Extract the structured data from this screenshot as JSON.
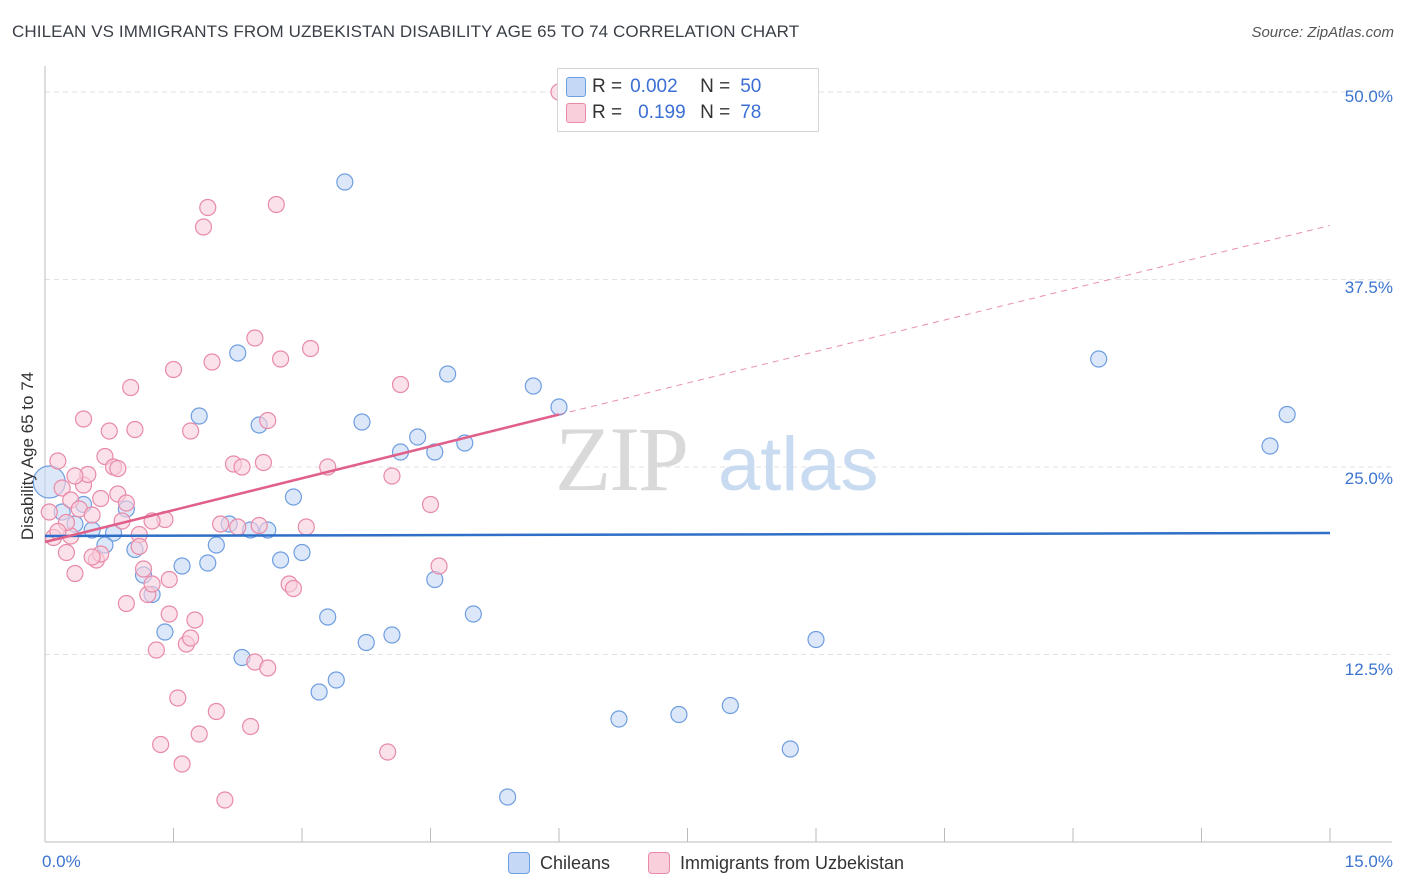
{
  "chart_data": {
    "type": "scatter",
    "title": "CHILEAN VS IMMIGRANTS FROM UZBEKISTAN DISABILITY AGE 65 TO 74 CORRELATION CHART",
    "source": "Source: ZipAtlas.com",
    "xlabel": "",
    "ylabel": "Disability Age 65 to 74",
    "xlim": [
      0,
      15
    ],
    "ylim": [
      0,
      52
    ],
    "x_tick_labels": [
      "0.0%",
      "15.0%"
    ],
    "y_ticks": [
      12.5,
      25.0,
      37.5,
      50.0
    ],
    "y_tick_labels": [
      "12.5%",
      "25.0%",
      "37.5%",
      "50.0%"
    ],
    "watermark": "ZIPatlas",
    "colors": {
      "chileans_fill": "#c5d8f5",
      "chileans_stroke": "#6f9ee0",
      "chileans_line": "#2f6fc7",
      "uzbek_fill": "#f9cfdc",
      "uzbek_stroke": "#e88aa8",
      "uzbek_line": "#e0608a",
      "grid": "#e2e2e2",
      "axis_text": "#3b74cf"
    },
    "series": [
      {
        "name": "Chileans",
        "r_label": "R =",
        "r_value": "0.002",
        "n_label": "N =",
        "n_value": "50",
        "trend": {
          "x": [
            0.0,
            15.0
          ],
          "y": [
            20.4,
            20.6
          ],
          "dashed_extension": false
        },
        "points": [
          [
            0.05,
            24.0
          ],
          [
            0.2,
            22.0
          ],
          [
            0.35,
            21.2
          ],
          [
            0.45,
            22.5
          ],
          [
            0.55,
            20.8
          ],
          [
            0.8,
            20.6
          ],
          [
            0.7,
            19.8
          ],
          [
            0.95,
            22.2
          ],
          [
            1.05,
            19.5
          ],
          [
            1.15,
            17.8
          ],
          [
            1.25,
            16.5
          ],
          [
            1.4,
            14.0
          ],
          [
            1.6,
            18.4
          ],
          [
            1.8,
            28.4
          ],
          [
            1.9,
            18.6
          ],
          [
            2.0,
            19.8
          ],
          [
            2.15,
            21.2
          ],
          [
            2.25,
            32.6
          ],
          [
            2.4,
            20.8
          ],
          [
            2.5,
            27.8
          ],
          [
            2.6,
            20.8
          ],
          [
            2.75,
            18.8
          ],
          [
            2.9,
            23.0
          ],
          [
            3.0,
            19.3
          ],
          [
            3.3,
            15.0
          ],
          [
            3.4,
            10.8
          ],
          [
            3.5,
            44.0
          ],
          [
            3.2,
            10.0
          ],
          [
            3.7,
            28.0
          ],
          [
            3.75,
            13.3
          ],
          [
            4.05,
            13.8
          ],
          [
            4.15,
            26.0
          ],
          [
            4.35,
            27.0
          ],
          [
            4.55,
            26.0
          ],
          [
            4.7,
            31.2
          ],
          [
            4.55,
            17.5
          ],
          [
            4.9,
            26.6
          ],
          [
            5.0,
            15.2
          ],
          [
            5.4,
            3.0
          ],
          [
            5.7,
            30.4
          ],
          [
            6.0,
            29.0
          ],
          [
            6.7,
            8.2
          ],
          [
            7.4,
            8.5
          ],
          [
            8.0,
            9.1
          ],
          [
            8.7,
            6.2
          ],
          [
            9.0,
            13.5
          ],
          [
            12.3,
            32.2
          ],
          [
            14.3,
            26.4
          ],
          [
            14.5,
            28.5
          ],
          [
            2.3,
            12.3
          ]
        ]
      },
      {
        "name": "Immigrants from Uzbekistan",
        "r_label": "R =",
        "r_value": "0.199",
        "n_label": "N =",
        "n_value": "78",
        "trend": {
          "x": [
            0.0,
            6.0
          ],
          "y": [
            20.0,
            28.5
          ],
          "dashed_to": [
            15.0,
            41.1
          ],
          "dashed_extension": true
        },
        "points": [
          [
            0.05,
            22.0
          ],
          [
            0.1,
            20.3
          ],
          [
            0.15,
            25.4
          ],
          [
            0.2,
            23.6
          ],
          [
            0.25,
            19.3
          ],
          [
            0.3,
            22.8
          ],
          [
            0.3,
            20.4
          ],
          [
            0.35,
            17.9
          ],
          [
            0.4,
            22.2
          ],
          [
            0.45,
            23.8
          ],
          [
            0.5,
            24.5
          ],
          [
            0.55,
            21.8
          ],
          [
            0.6,
            18.8
          ],
          [
            0.65,
            19.2
          ],
          [
            0.7,
            25.7
          ],
          [
            0.75,
            27.4
          ],
          [
            0.8,
            25.0
          ],
          [
            0.85,
            23.2
          ],
          [
            0.9,
            21.4
          ],
          [
            0.95,
            22.6
          ],
          [
            1.0,
            30.3
          ],
          [
            1.05,
            27.5
          ],
          [
            1.1,
            20.5
          ],
          [
            1.15,
            18.2
          ],
          [
            1.2,
            16.5
          ],
          [
            1.25,
            17.2
          ],
          [
            1.3,
            12.8
          ],
          [
            1.35,
            6.5
          ],
          [
            1.4,
            21.5
          ],
          [
            1.45,
            15.2
          ],
          [
            1.5,
            31.5
          ],
          [
            1.55,
            9.6
          ],
          [
            1.6,
            5.2
          ],
          [
            1.65,
            13.2
          ],
          [
            1.7,
            27.4
          ],
          [
            1.75,
            14.8
          ],
          [
            1.8,
            7.2
          ],
          [
            1.85,
            41.0
          ],
          [
            1.9,
            42.3
          ],
          [
            1.95,
            32.0
          ],
          [
            2.0,
            8.7
          ],
          [
            2.05,
            21.2
          ],
          [
            2.1,
            2.8
          ],
          [
            2.2,
            25.2
          ],
          [
            2.25,
            21.0
          ],
          [
            2.4,
            7.7
          ],
          [
            2.45,
            33.6
          ],
          [
            2.5,
            21.1
          ],
          [
            2.55,
            25.3
          ],
          [
            2.6,
            28.1
          ],
          [
            2.7,
            42.5
          ],
          [
            2.75,
            32.2
          ],
          [
            2.85,
            17.2
          ],
          [
            2.9,
            16.9
          ],
          [
            3.05,
            21.0
          ],
          [
            3.1,
            32.9
          ],
          [
            2.45,
            12.0
          ],
          [
            4.0,
            6.0
          ],
          [
            4.05,
            24.4
          ],
          [
            4.15,
            30.5
          ],
          [
            4.5,
            22.5
          ],
          [
            4.6,
            18.4
          ],
          [
            6.0,
            50.0
          ],
          [
            0.45,
            28.2
          ],
          [
            0.55,
            19.0
          ],
          [
            2.3,
            25.0
          ],
          [
            1.25,
            21.4
          ],
          [
            1.1,
            19.7
          ],
          [
            0.85,
            24.9
          ],
          [
            0.65,
            22.9
          ],
          [
            0.95,
            15.9
          ],
          [
            1.7,
            13.6
          ],
          [
            2.6,
            11.6
          ],
          [
            3.3,
            25.0
          ],
          [
            1.45,
            17.5
          ],
          [
            0.25,
            21.3
          ],
          [
            0.15,
            20.7
          ],
          [
            0.35,
            24.4
          ]
        ]
      }
    ]
  }
}
